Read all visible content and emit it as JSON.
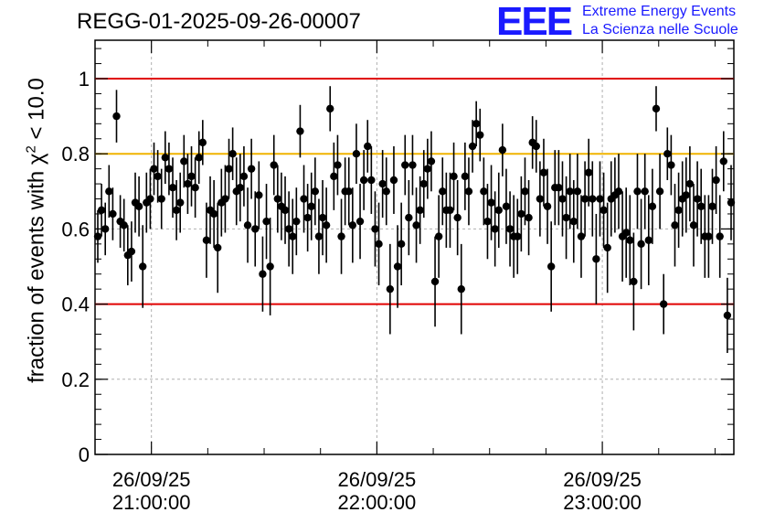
{
  "chart_data": {
    "type": "scatter",
    "title": "REGG-01-2025-09-26-00007",
    "ylabel": {
      "prefix": "fraction of events with ",
      "symbol": "χ",
      "exponent": "2",
      "suffix": " < 10.0"
    },
    "ylim": [
      0,
      1.1
    ],
    "yticks": [
      {
        "value": 0,
        "label": "0"
      },
      {
        "value": 0.2,
        "label": "0.2"
      },
      {
        "value": 0.4,
        "label": "0.4"
      },
      {
        "value": 0.6,
        "label": "0.6"
      },
      {
        "value": 0.8,
        "label": "0.8"
      },
      {
        "value": 1.0,
        "label": "1"
      }
    ],
    "xlim_minutes": [
      -15,
      155
    ],
    "xticks": [
      {
        "value": 0,
        "date": "26/09/25",
        "time": "21:00:00"
      },
      {
        "value": 60,
        "date": "26/09/25",
        "time": "22:00:00"
      },
      {
        "value": 120,
        "date": "26/09/25",
        "time": "23:00:00"
      }
    ],
    "grid": true,
    "reference_lines": [
      {
        "y": 1.0,
        "color": "#e00000"
      },
      {
        "y": 0.8,
        "color": "#f0b400"
      },
      {
        "y": 0.4,
        "color": "#e00000"
      }
    ],
    "series": [
      {
        "color": "#000000",
        "y": [
          0.58,
          0.65,
          0.6,
          0.7,
          0.64,
          0.9,
          0.62,
          0.61,
          0.53,
          0.54,
          0.67,
          0.66,
          0.5,
          0.67,
          0.68,
          0.76,
          0.74,
          0.68,
          0.79,
          0.76,
          0.71,
          0.65,
          0.67,
          0.78,
          0.72,
          0.74,
          0.71,
          0.79,
          0.83,
          0.57,
          0.65,
          0.64,
          0.55,
          0.67,
          0.68,
          0.76,
          0.8,
          0.7,
          0.71,
          0.74,
          0.61,
          0.76,
          0.6,
          0.69,
          0.48,
          0.62,
          0.5,
          0.77,
          0.68,
          0.66,
          0.65,
          0.6,
          0.58,
          0.62,
          0.86,
          0.68,
          0.63,
          0.66,
          0.7,
          0.58,
          0.63,
          0.61,
          0.92,
          0.74,
          0.77,
          0.58,
          0.7,
          0.7,
          0.61,
          0.8,
          0.62,
          0.73,
          0.82,
          0.73,
          0.6,
          0.56,
          0.72,
          0.7,
          0.44,
          0.73,
          0.5,
          0.56,
          0.77,
          0.63,
          0.77,
          0.61,
          0.65,
          0.72,
          0.76,
          0.78,
          0.46,
          0.58,
          0.7,
          0.65,
          0.65,
          0.74,
          0.63,
          0.44,
          0.74,
          0.7,
          0.82,
          0.88,
          0.85,
          0.7,
          0.62,
          0.67,
          0.6,
          0.65,
          0.81,
          0.66,
          0.6,
          0.58,
          0.58,
          0.64,
          0.7,
          0.63,
          0.83,
          0.82,
          0.68,
          0.75,
          0.66,
          0.5,
          0.71,
          0.71,
          0.68,
          0.63,
          0.7,
          0.62,
          0.7,
          0.58,
          0.68,
          0.75,
          0.68,
          0.52,
          0.68,
          0.65,
          0.55,
          0.68,
          0.69,
          0.7,
          0.58,
          0.59,
          0.57,
          0.46,
          0.7,
          0.56,
          0.7,
          0.57,
          0.66,
          0.92,
          0.7,
          0.4,
          0.8,
          0.77,
          0.61,
          0.65,
          0.68,
          0.69,
          0.72,
          0.61,
          0.68,
          0.66,
          0.58,
          0.58,
          0.66,
          0.73,
          0.58,
          0.78,
          0.37,
          0.67
        ],
        "err": [
          0.07,
          0.07,
          0.07,
          0.07,
          0.07,
          0.07,
          0.07,
          0.07,
          0.08,
          0.08,
          0.08,
          0.08,
          0.11,
          0.08,
          0.08,
          0.07,
          0.07,
          0.08,
          0.07,
          0.07,
          0.08,
          0.08,
          0.08,
          0.07,
          0.08,
          0.08,
          0.08,
          0.07,
          0.06,
          0.1,
          0.09,
          0.09,
          0.12,
          0.09,
          0.09,
          0.08,
          0.07,
          0.09,
          0.09,
          0.08,
          0.1,
          0.08,
          0.1,
          0.09,
          0.1,
          0.1,
          0.13,
          0.08,
          0.09,
          0.09,
          0.09,
          0.1,
          0.1,
          0.09,
          0.07,
          0.09,
          0.09,
          0.09,
          0.09,
          0.1,
          0.1,
          0.1,
          0.06,
          0.09,
          0.08,
          0.1,
          0.09,
          0.09,
          0.1,
          0.08,
          0.1,
          0.08,
          0.07,
          0.09,
          0.1,
          0.11,
          0.09,
          0.09,
          0.12,
          0.09,
          0.11,
          0.11,
          0.08,
          0.1,
          0.08,
          0.1,
          0.09,
          0.09,
          0.08,
          0.08,
          0.12,
          0.11,
          0.09,
          0.1,
          0.1,
          0.09,
          0.1,
          0.12,
          0.09,
          0.09,
          0.07,
          0.06,
          0.07,
          0.09,
          0.1,
          0.1,
          0.1,
          0.1,
          0.07,
          0.1,
          0.1,
          0.11,
          0.1,
          0.1,
          0.09,
          0.1,
          0.07,
          0.07,
          0.1,
          0.09,
          0.1,
          0.12,
          0.1,
          0.1,
          0.1,
          0.11,
          0.1,
          0.11,
          0.1,
          0.11,
          0.1,
          0.09,
          0.1,
          0.12,
          0.1,
          0.1,
          0.12,
          0.1,
          0.1,
          0.1,
          0.12,
          0.12,
          0.12,
          0.13,
          0.1,
          0.12,
          0.1,
          0.12,
          0.1,
          0.06,
          0.1,
          0.08,
          0.07,
          0.08,
          0.11,
          0.1,
          0.1,
          0.1,
          0.1,
          0.11,
          0.1,
          0.1,
          0.11,
          0.11,
          0.1,
          0.09,
          0.11,
          0.08,
          0.1,
          0.1
        ]
      }
    ]
  }
}
